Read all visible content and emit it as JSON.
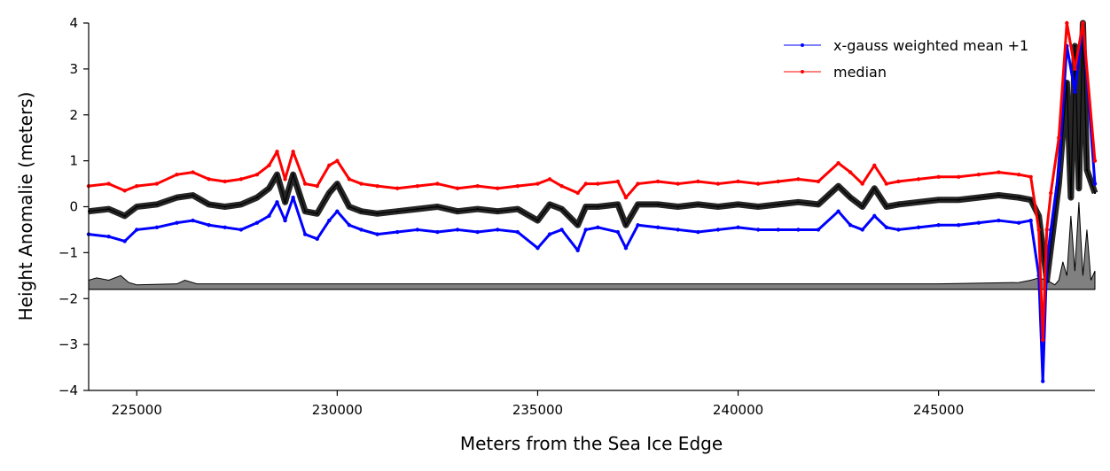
{
  "chart_data": {
    "type": "line",
    "title": "",
    "xlabel": "Meters from the Sea Ice Edge",
    "ylabel": "Height Anomalie (meters)",
    "xlim": [
      223800,
      248900
    ],
    "ylim": [
      -4,
      4
    ],
    "xticks": [
      225000,
      230000,
      235000,
      240000,
      245000
    ],
    "xtick_labels": [
      "225000",
      "230000",
      "235000",
      "240000",
      "245000"
    ],
    "yticks": [
      4,
      3,
      2,
      1,
      0,
      -1,
      -2,
      -3,
      -4
    ],
    "ytick_labels": [
      "4",
      "3",
      "2",
      "1",
      "0",
      "−1",
      "−2",
      "−3",
      "−4"
    ],
    "grid": false,
    "legend_placement": "top-right",
    "colors": {
      "mean": "#0000ff",
      "median": "#ff0000",
      "raw": "#000000",
      "fill": "#808080"
    },
    "series": [
      {
        "name": "x-gauss weighted mean +1",
        "color": "#0000ff",
        "x": [
          223800,
          224300,
          224700,
          225000,
          225500,
          226000,
          226400,
          226800,
          227200,
          227600,
          228000,
          228300,
          228500,
          228700,
          228900,
          229200,
          229500,
          229800,
          230000,
          230300,
          230600,
          231000,
          231500,
          232000,
          232500,
          233000,
          233500,
          234000,
          234500,
          235000,
          235300,
          235600,
          236000,
          236200,
          236500,
          237000,
          237200,
          237500,
          238000,
          238500,
          239000,
          239500,
          240000,
          240500,
          241000,
          241500,
          242000,
          242500,
          242800,
          243100,
          243400,
          243700,
          244000,
          244500,
          245000,
          245500,
          246000,
          246500,
          247000,
          247300,
          247500,
          247600,
          247700,
          247800,
          248000,
          248200,
          248400,
          248600,
          248900
        ],
        "y": [
          -0.6,
          -0.65,
          -0.75,
          -0.5,
          -0.45,
          -0.35,
          -0.3,
          -0.4,
          -0.45,
          -0.5,
          -0.35,
          -0.2,
          0.1,
          -0.3,
          0.2,
          -0.6,
          -0.7,
          -0.3,
          -0.1,
          -0.4,
          -0.5,
          -0.6,
          -0.55,
          -0.5,
          -0.55,
          -0.5,
          -0.55,
          -0.5,
          -0.55,
          -0.9,
          -0.6,
          -0.5,
          -0.95,
          -0.5,
          -0.45,
          -0.55,
          -0.9,
          -0.4,
          -0.45,
          -0.5,
          -0.55,
          -0.5,
          -0.45,
          -0.5,
          -0.5,
          -0.5,
          -0.5,
          -0.1,
          -0.4,
          -0.5,
          -0.2,
          -0.45,
          -0.5,
          -0.45,
          -0.4,
          -0.4,
          -0.35,
          -0.3,
          -0.35,
          -0.3,
          -1.5,
          -3.8,
          -1.2,
          -0.5,
          0.8,
          3.5,
          2.5,
          4.0,
          0.5
        ]
      },
      {
        "name": "median",
        "color": "#ff0000",
        "x": [
          223800,
          224300,
          224700,
          225000,
          225500,
          226000,
          226400,
          226800,
          227200,
          227600,
          228000,
          228300,
          228500,
          228700,
          228900,
          229200,
          229500,
          229800,
          230000,
          230300,
          230600,
          231000,
          231500,
          232000,
          232500,
          233000,
          233500,
          234000,
          234500,
          235000,
          235300,
          235600,
          236000,
          236200,
          236500,
          237000,
          237200,
          237500,
          238000,
          238500,
          239000,
          239500,
          240000,
          240500,
          241000,
          241500,
          242000,
          242500,
          242800,
          243100,
          243400,
          243700,
          244000,
          244500,
          245000,
          245500,
          246000,
          246500,
          247000,
          247300,
          247500,
          247600,
          247700,
          247800,
          248000,
          248200,
          248400,
          248600,
          248900
        ],
        "y": [
          0.45,
          0.5,
          0.35,
          0.45,
          0.5,
          0.7,
          0.75,
          0.6,
          0.55,
          0.6,
          0.7,
          0.9,
          1.2,
          0.6,
          1.2,
          0.5,
          0.45,
          0.9,
          1.0,
          0.6,
          0.5,
          0.45,
          0.4,
          0.45,
          0.5,
          0.4,
          0.45,
          0.4,
          0.45,
          0.5,
          0.6,
          0.45,
          0.3,
          0.5,
          0.5,
          0.55,
          0.2,
          0.5,
          0.55,
          0.5,
          0.55,
          0.5,
          0.55,
          0.5,
          0.55,
          0.6,
          0.55,
          0.95,
          0.75,
          0.5,
          0.9,
          0.5,
          0.55,
          0.6,
          0.65,
          0.65,
          0.7,
          0.75,
          0.7,
          0.65,
          -0.5,
          -2.9,
          -0.5,
          0.3,
          1.5,
          4.0,
          3.0,
          4.0,
          1.0
        ]
      }
    ],
    "raw_series": {
      "name": "",
      "color": "#000000",
      "x": [
        223800,
        224300,
        224700,
        225000,
        225500,
        226000,
        226400,
        226800,
        227200,
        227600,
        228000,
        228300,
        228500,
        228700,
        228900,
        229200,
        229500,
        229800,
        230000,
        230300,
        230600,
        231000,
        231500,
        232000,
        232500,
        233000,
        233500,
        234000,
        234500,
        235000,
        235300,
        235600,
        236000,
        236200,
        236500,
        237000,
        237200,
        237500,
        238000,
        238500,
        239000,
        239500,
        240000,
        240500,
        241000,
        241500,
        242000,
        242500,
        242800,
        243100,
        243400,
        243700,
        244000,
        244500,
        245000,
        245500,
        246000,
        246500,
        247000,
        247300,
        247500,
        247700,
        248000,
        248200,
        248300,
        248400,
        248500,
        248600,
        248700,
        248900
      ],
      "y": [
        -0.1,
        -0.05,
        -0.2,
        0.0,
        0.05,
        0.2,
        0.25,
        0.05,
        0.0,
        0.05,
        0.2,
        0.4,
        0.7,
        0.1,
        0.7,
        -0.1,
        -0.15,
        0.3,
        0.5,
        0.0,
        -0.1,
        -0.15,
        -0.1,
        -0.05,
        0.0,
        -0.1,
        -0.05,
        -0.1,
        -0.05,
        -0.3,
        0.05,
        -0.05,
        -0.4,
        0.0,
        0.0,
        0.05,
        -0.4,
        0.05,
        0.05,
        0.0,
        0.05,
        0.0,
        0.05,
        0.0,
        0.05,
        0.1,
        0.05,
        0.45,
        0.2,
        0.0,
        0.4,
        0.0,
        0.05,
        0.1,
        0.15,
        0.15,
        0.2,
        0.25,
        0.2,
        0.15,
        -0.2,
        -1.6,
        0.5,
        2.7,
        0.2,
        3.5,
        0.4,
        4.0,
        0.8,
        0.3
      ]
    },
    "fill_series": {
      "name": "",
      "baseline": -1.8,
      "x": [
        223800,
        224000,
        224300,
        224600,
        224800,
        225000,
        226000,
        226200,
        226500,
        230000,
        235000,
        240000,
        245000,
        247000,
        247300,
        247500,
        247700,
        247900,
        248000,
        248100,
        248200,
        248300,
        248400,
        248500,
        248600,
        248700,
        248800,
        248900
      ],
      "y": [
        -1.6,
        -1.55,
        -1.6,
        -1.5,
        -1.65,
        -1.7,
        -1.68,
        -1.6,
        -1.68,
        -1.68,
        -1.68,
        -1.68,
        -1.68,
        -1.65,
        -1.6,
        -1.55,
        -1.6,
        -1.7,
        -1.6,
        -1.2,
        -1.5,
        -0.2,
        -1.4,
        0.1,
        -1.5,
        -0.5,
        -1.6,
        -1.4
      ]
    }
  }
}
